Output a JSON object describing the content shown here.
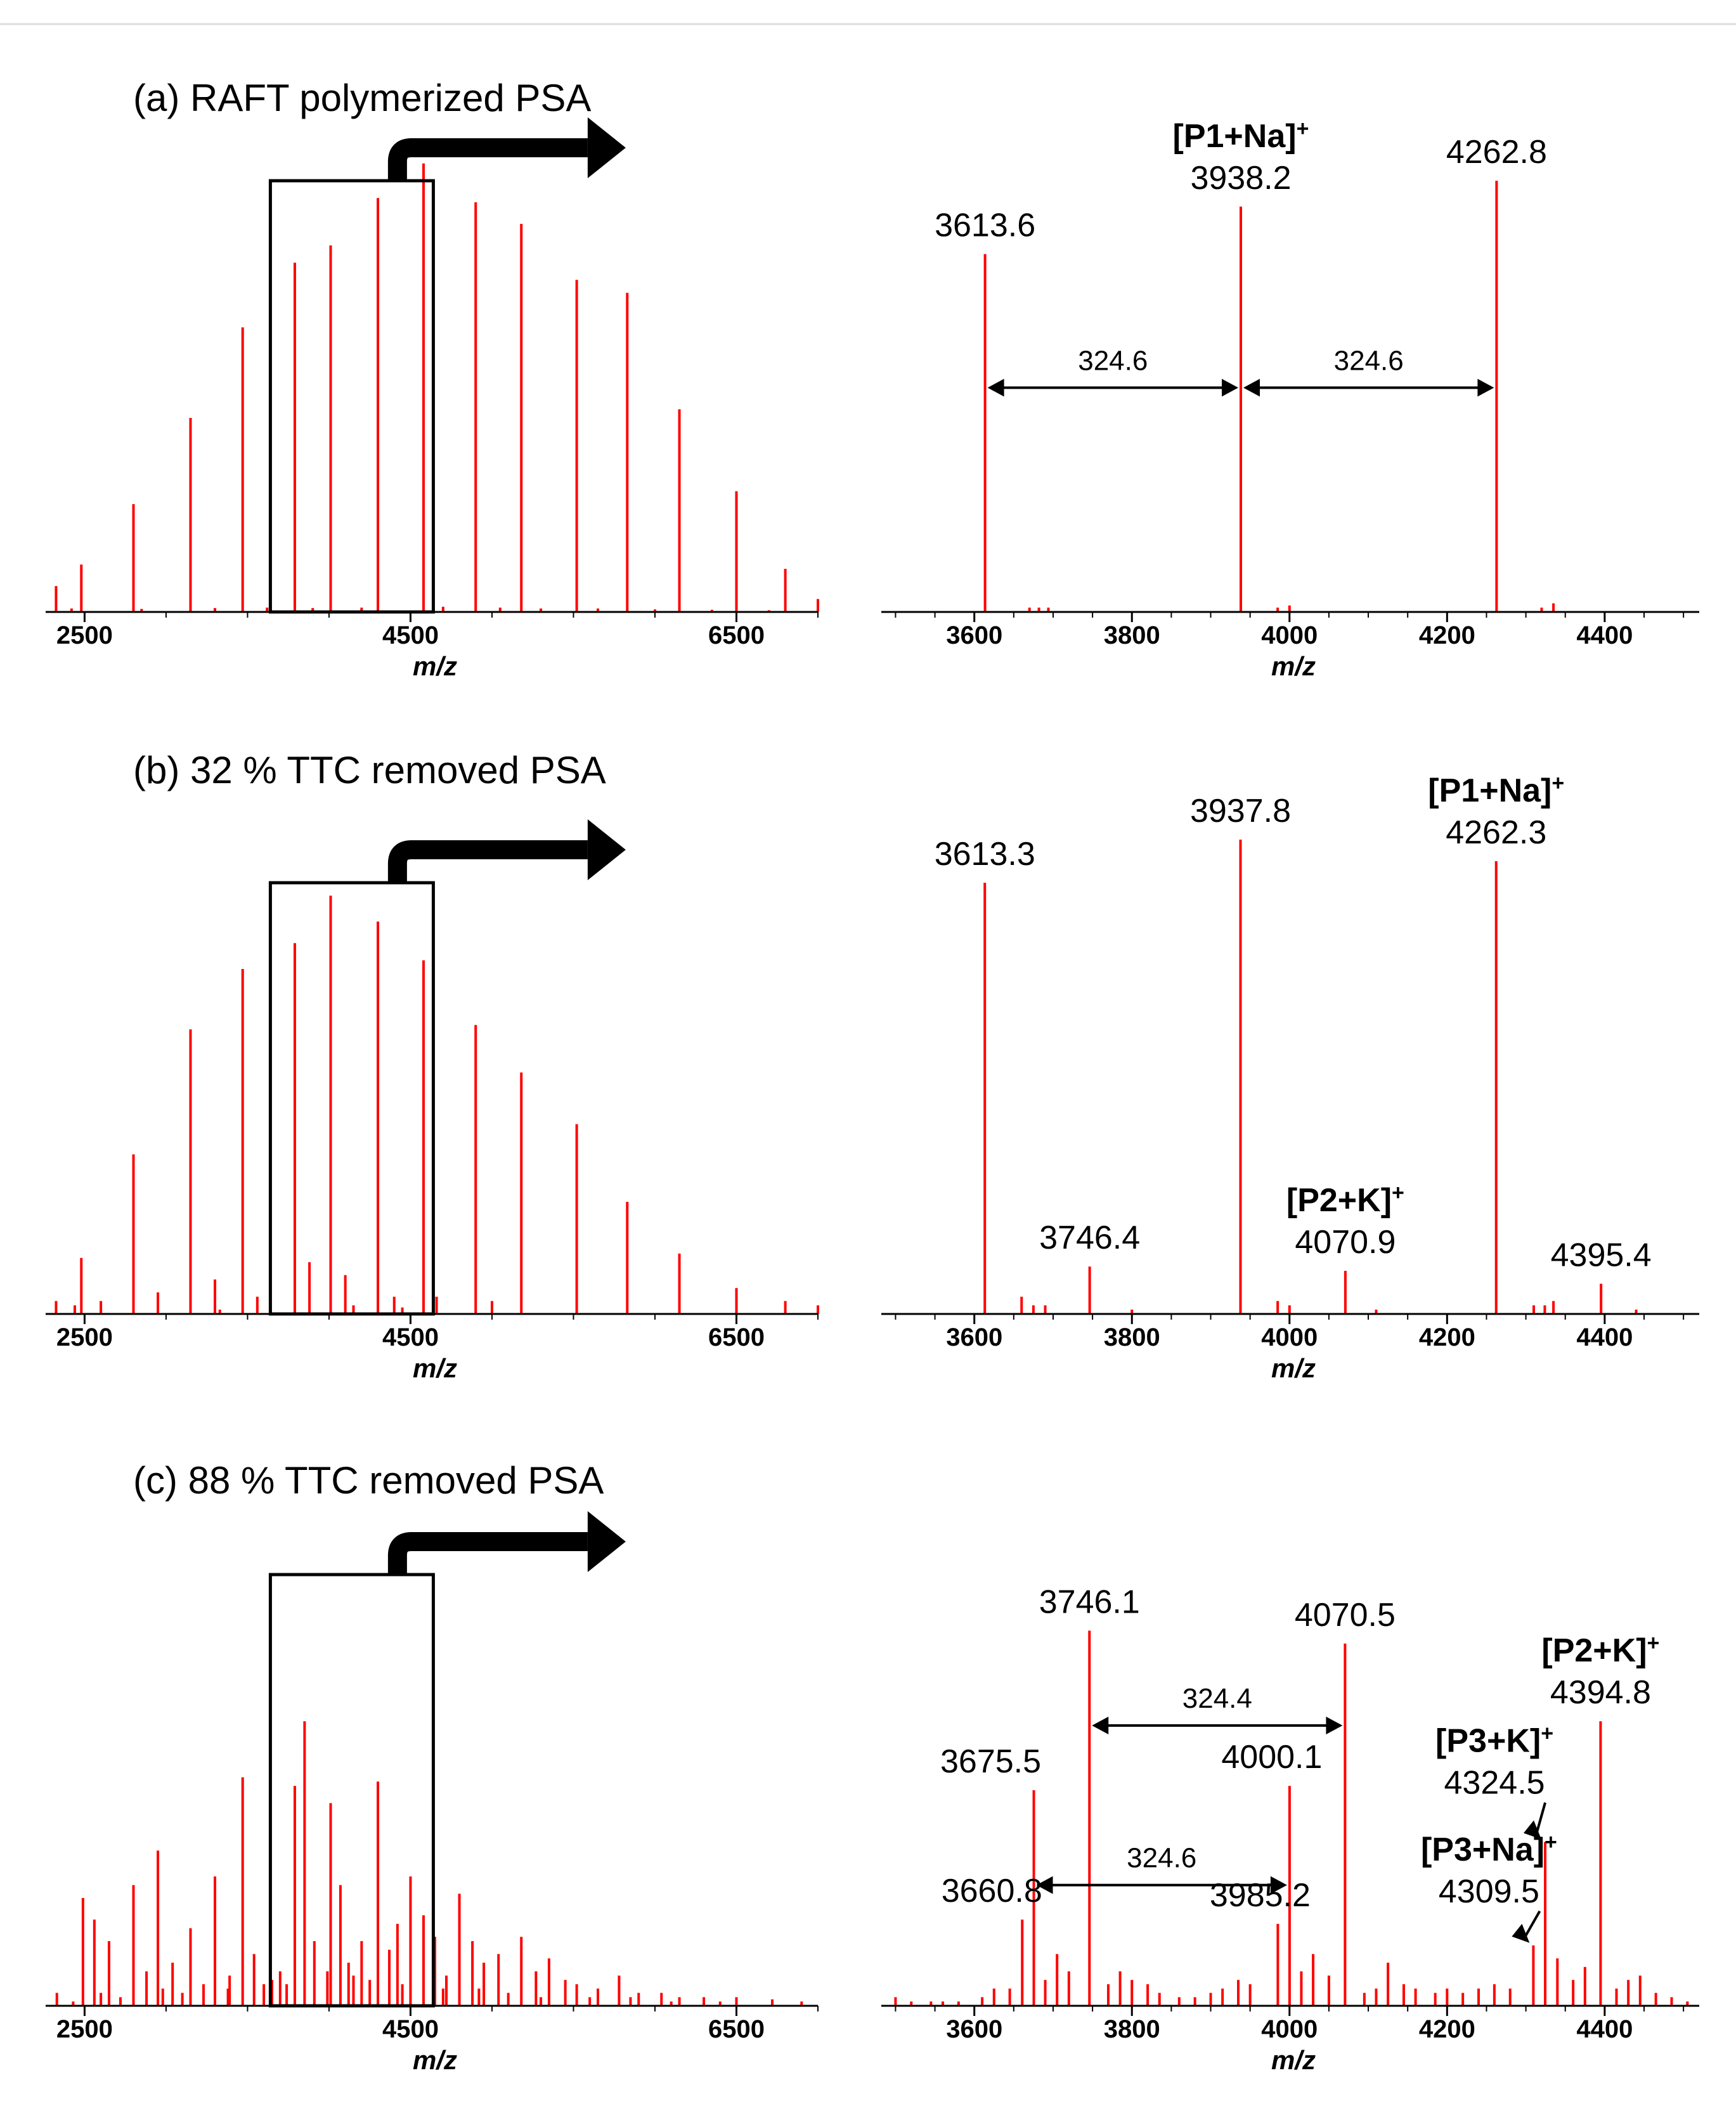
{
  "figure": {
    "colors": {
      "peak": "#ff0000",
      "axis": "#000000",
      "arrow": "#000000"
    },
    "xlabel": "m/z"
  },
  "chart_data": [
    {
      "id": "a-overview",
      "type": "bar",
      "title": "(a) RAFT polymerized PSA",
      "xlabel": "m/z",
      "xlim": [
        2300,
        7000
      ],
      "ylim": [
        0,
        100
      ],
      "xticks": [
        2500,
        4500,
        6500
      ],
      "zoom_box_xrange": [
        3640,
        4640
      ],
      "peaks": [
        [
          2325,
          6
        ],
        [
          2480,
          11
        ],
        [
          2800,
          25
        ],
        [
          3150,
          45
        ],
        [
          3470,
          66
        ],
        [
          3790,
          81
        ],
        [
          4010,
          85
        ],
        [
          4300,
          96
        ],
        [
          4580,
          104
        ],
        [
          4900,
          95
        ],
        [
          5180,
          90
        ],
        [
          5520,
          77
        ],
        [
          5830,
          74
        ],
        [
          6150,
          47
        ],
        [
          6500,
          28
        ],
        [
          6800,
          10
        ],
        [
          7000,
          3
        ],
        [
          2420,
          0.8
        ],
        [
          2850,
          0.7
        ],
        [
          3300,
          0.9
        ],
        [
          3620,
          1
        ],
        [
          3900,
          0.9
        ],
        [
          4200,
          1
        ],
        [
          4700,
          1.2
        ],
        [
          5050,
          1
        ],
        [
          5300,
          0.8
        ],
        [
          5650,
          0.8
        ],
        [
          6000,
          0.6
        ],
        [
          6350,
          0.5
        ],
        [
          6700,
          0.4
        ]
      ]
    },
    {
      "id": "a-zoom",
      "type": "bar",
      "xlabel": "m/z",
      "xlim": [
        3490,
        4520
      ],
      "ylim": [
        0,
        100
      ],
      "xticks": [
        3600,
        3800,
        4000,
        4200,
        4400
      ],
      "peaks": [
        [
          3613.6,
          83
        ],
        [
          3670,
          1
        ],
        [
          3682,
          1
        ],
        [
          3694,
          1
        ],
        [
          3938.2,
          94
        ],
        [
          3985,
          1
        ],
        [
          4000,
          1.5
        ],
        [
          4262.8,
          100
        ],
        [
          4320,
          1
        ],
        [
          4335,
          2
        ]
      ],
      "labels": [
        {
          "x": 3613.6,
          "value": "3613.6"
        },
        {
          "x": 3938.2,
          "value": "3938.2",
          "ion": "[P1+Na]",
          "charge": "+"
        },
        {
          "x": 4262.8,
          "value": "4262.8"
        }
      ],
      "spacings": [
        {
          "from": 3613.6,
          "to": 3938.2,
          "y": 52,
          "value": "324.6"
        },
        {
          "from": 3938.2,
          "to": 4262.8,
          "y": 52,
          "value": "324.6"
        }
      ]
    },
    {
      "id": "b-overview",
      "type": "bar",
      "title": "(b) 32 % TTC removed PSA",
      "xlabel": "m/z",
      "xlim": [
        2300,
        7000
      ],
      "ylim": [
        0,
        100
      ],
      "xticks": [
        2500,
        4500,
        6500
      ],
      "zoom_box_xrange": [
        3640,
        4640
      ],
      "peaks": [
        [
          2325,
          3
        ],
        [
          2440,
          2
        ],
        [
          2480,
          13
        ],
        [
          2600,
          3
        ],
        [
          2800,
          37
        ],
        [
          2950,
          5
        ],
        [
          3150,
          66
        ],
        [
          3300,
          8
        ],
        [
          3470,
          80
        ],
        [
          3560,
          4
        ],
        [
          3640,
          3
        ],
        [
          3790,
          86
        ],
        [
          3880,
          12
        ],
        [
          4010,
          97
        ],
        [
          4100,
          9
        ],
        [
          4300,
          91
        ],
        [
          4400,
          4
        ],
        [
          4580,
          82
        ],
        [
          4660,
          4
        ],
        [
          4900,
          67
        ],
        [
          5000,
          3
        ],
        [
          5180,
          56
        ],
        [
          5520,
          44
        ],
        [
          5830,
          26
        ],
        [
          6150,
          14
        ],
        [
          6500,
          6
        ],
        [
          6800,
          3
        ],
        [
          7000,
          2
        ],
        [
          3330,
          1
        ],
        [
          4150,
          2
        ],
        [
          4450,
          1.5
        ]
      ]
    },
    {
      "id": "b-zoom",
      "type": "bar",
      "xlabel": "m/z",
      "xlim": [
        3490,
        4520
      ],
      "ylim": [
        0,
        100
      ],
      "xticks": [
        3600,
        3800,
        4000,
        4200,
        4400
      ],
      "peaks": [
        [
          3613.3,
          100
        ],
        [
          3660,
          4
        ],
        [
          3675,
          2
        ],
        [
          3690,
          2
        ],
        [
          3746.4,
          11
        ],
        [
          3800,
          1
        ],
        [
          3937.8,
          110
        ],
        [
          3985,
          3
        ],
        [
          4000,
          2
        ],
        [
          4070.9,
          10
        ],
        [
          4110,
          1
        ],
        [
          4262.3,
          105
        ],
        [
          4310,
          2
        ],
        [
          4324,
          2
        ],
        [
          4335,
          3
        ],
        [
          4395.4,
          7
        ],
        [
          4440,
          1
        ]
      ],
      "labels": [
        {
          "x": 3613.3,
          "value": "3613.3"
        },
        {
          "x": 3746.4,
          "value": "3746.4"
        },
        {
          "x": 3937.8,
          "value": "3937.8"
        },
        {
          "x": 4070.9,
          "value": "4070.9",
          "ion": "[P2+K]",
          "charge": "+"
        },
        {
          "x": 4262.3,
          "value": "4262.3",
          "ion": "[P1+Na]",
          "charge": "+"
        },
        {
          "x": 4395.4,
          "value": "4395.4"
        }
      ],
      "spacings": []
    },
    {
      "id": "c-overview",
      "type": "bar",
      "title": "(c) 88 % TTC removed PSA",
      "xlabel": "m/z",
      "xlim": [
        2300,
        7000
      ],
      "ylim": [
        0,
        100
      ],
      "xticks": [
        2500,
        4500,
        6500
      ],
      "zoom_box_xrange": [
        3640,
        4640
      ],
      "peaks": [
        [
          2330,
          3
        ],
        [
          2490,
          25
        ],
        [
          2560,
          20
        ],
        [
          2650,
          15
        ],
        [
          2800,
          28
        ],
        [
          2880,
          8
        ],
        [
          2950,
          36
        ],
        [
          3040,
          10
        ],
        [
          3150,
          18
        ],
        [
          3230,
          5
        ],
        [
          3300,
          30
        ],
        [
          3390,
          7
        ],
        [
          3470,
          53
        ],
        [
          3540,
          12
        ],
        [
          3600,
          5
        ],
        [
          3700,
          8
        ],
        [
          3790,
          51
        ],
        [
          3850,
          66
        ],
        [
          3910,
          15
        ],
        [
          4010,
          47
        ],
        [
          4070,
          28
        ],
        [
          4120,
          10
        ],
        [
          4200,
          15
        ],
        [
          4300,
          52
        ],
        [
          4370,
          13
        ],
        [
          4420,
          19
        ],
        [
          4500,
          30
        ],
        [
          4580,
          21
        ],
        [
          4650,
          16
        ],
        [
          4720,
          7
        ],
        [
          4800,
          26
        ],
        [
          4880,
          15
        ],
        [
          4950,
          10
        ],
        [
          5040,
          12
        ],
        [
          5180,
          16
        ],
        [
          5270,
          8
        ],
        [
          5350,
          11
        ],
        [
          5450,
          6
        ],
        [
          5520,
          5
        ],
        [
          5650,
          4
        ],
        [
          5780,
          7
        ],
        [
          5900,
          3
        ],
        [
          6040,
          3
        ],
        [
          6150,
          2
        ],
        [
          6300,
          2
        ],
        [
          6500,
          2
        ],
        [
          6720,
          1.5
        ],
        [
          6900,
          1
        ],
        [
          2430,
          1
        ],
        [
          2600,
          3
        ],
        [
          2720,
          2
        ],
        [
          2980,
          4
        ],
        [
          3100,
          3
        ],
        [
          3380,
          4
        ],
        [
          3650,
          6
        ],
        [
          3740,
          5
        ],
        [
          3990,
          8
        ],
        [
          4150,
          7
        ],
        [
          4250,
          6
        ],
        [
          4450,
          5
        ],
        [
          4700,
          4
        ],
        [
          4920,
          4
        ],
        [
          5100,
          3
        ],
        [
          5300,
          2
        ],
        [
          5600,
          2
        ],
        [
          5850,
          2
        ],
        [
          6100,
          1
        ],
        [
          6400,
          1
        ]
      ]
    },
    {
      "id": "c-zoom",
      "type": "bar",
      "xlabel": "m/z",
      "xlim": [
        3490,
        4520
      ],
      "ylim": [
        0,
        100
      ],
      "xticks": [
        3600,
        3800,
        4000,
        4200,
        4400
      ],
      "peaks": [
        [
          3500,
          2
        ],
        [
          3520,
          1
        ],
        [
          3545,
          1
        ],
        [
          3560,
          1
        ],
        [
          3580,
          1
        ],
        [
          3610,
          2
        ],
        [
          3625,
          4
        ],
        [
          3645,
          4
        ],
        [
          3660.8,
          20
        ],
        [
          3675.5,
          50
        ],
        [
          3690,
          6
        ],
        [
          3705,
          12
        ],
        [
          3720,
          8
        ],
        [
          3746.1,
          87
        ],
        [
          3770,
          5
        ],
        [
          3785,
          8
        ],
        [
          3800,
          6
        ],
        [
          3820,
          5
        ],
        [
          3835,
          3
        ],
        [
          3860,
          2
        ],
        [
          3880,
          2
        ],
        [
          3900,
          3
        ],
        [
          3915,
          4
        ],
        [
          3935,
          6
        ],
        [
          3950,
          5
        ],
        [
          3985.2,
          19
        ],
        [
          4000.1,
          51
        ],
        [
          4015,
          8
        ],
        [
          4030,
          12
        ],
        [
          4050,
          7
        ],
        [
          4070.5,
          84
        ],
        [
          4095,
          3
        ],
        [
          4110,
          4
        ],
        [
          4125,
          10
        ],
        [
          4145,
          5
        ],
        [
          4160,
          4
        ],
        [
          4185,
          3
        ],
        [
          4200,
          4
        ],
        [
          4220,
          3
        ],
        [
          4240,
          4
        ],
        [
          4260,
          5
        ],
        [
          4280,
          4
        ],
        [
          4309.5,
          14
        ],
        [
          4324.5,
          38
        ],
        [
          4340,
          11
        ],
        [
          4360,
          6
        ],
        [
          4375,
          9
        ],
        [
          4394.8,
          66
        ],
        [
          4415,
          4
        ],
        [
          4430,
          6
        ],
        [
          4445,
          7
        ],
        [
          4465,
          3
        ],
        [
          4485,
          2
        ],
        [
          4505,
          1
        ]
      ],
      "labels": [
        {
          "x": 3660.8,
          "value": "3660.8"
        },
        {
          "x": 3675.5,
          "value": "3675.5"
        },
        {
          "x": 3746.1,
          "value": "3746.1"
        },
        {
          "x": 3985.2,
          "value": "3985.2"
        },
        {
          "x": 4000.1,
          "value": "4000.1"
        },
        {
          "x": 4070.5,
          "value": "4070.5"
        },
        {
          "x": 4394.8,
          "value": "4394.8",
          "ion": "[P2+K]",
          "charge": "+"
        },
        {
          "x": 4324.5,
          "value": "4324.5",
          "ion": "[P3+K]",
          "charge": "+"
        },
        {
          "x": 4309.5,
          "value": "4309.5",
          "ion": "[P3+Na]",
          "charge": "+"
        }
      ],
      "spacings": [
        {
          "from": 3746.1,
          "to": 4070.5,
          "y": 65,
          "value": "324.4"
        },
        {
          "from": 3675.5,
          "to": 4000.1,
          "y": 28,
          "value": "324.6"
        }
      ]
    }
  ]
}
